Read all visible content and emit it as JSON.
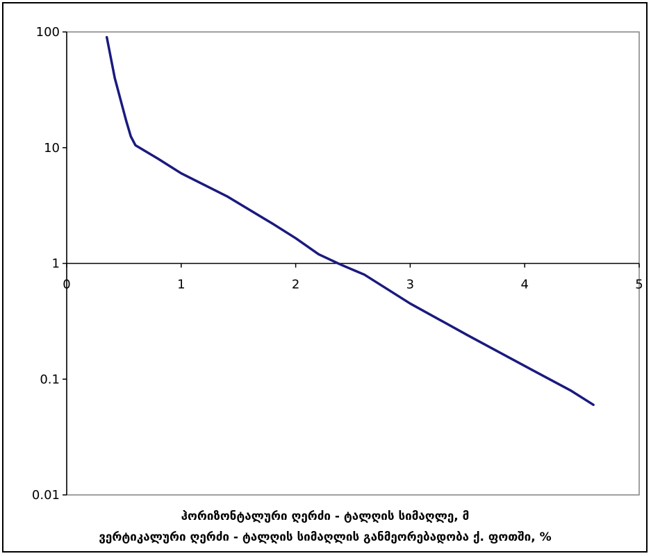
{
  "chart_data": {
    "type": "line",
    "title": "",
    "xlabel_lines": [
      "ჰორიზონტალური ღერძი - ტალღის სიმაღლე, მ",
      "ვერტიკალური ღერძი - ტალღის სიმაღლის განმეორებადობა ქ. ფოთში, %"
    ],
    "ylabel": "",
    "x_ticks": [
      "0",
      "1",
      "2",
      "3",
      "4",
      "5"
    ],
    "y_ticks": [
      "100",
      "10",
      "1",
      "0.1",
      "0.01"
    ],
    "xlim": [
      0,
      5
    ],
    "ylim": [
      0.01,
      100
    ],
    "y_scale": "log",
    "x_axis_crosses_y_at": 1,
    "grid": false,
    "legend": "none",
    "colors": {
      "line": "#1a1a7e",
      "axis": "#000000",
      "plot_border": "#808080"
    },
    "series": [
      {
        "x": [
          0.35,
          0.42,
          0.47,
          0.52,
          0.56,
          0.6,
          0.8,
          1.0,
          1.4,
          1.8,
          2.0,
          2.2,
          2.4,
          2.6,
          3.0,
          3.5,
          4.0,
          4.4,
          4.6
        ],
        "y": [
          90,
          40,
          26,
          17,
          12.5,
          10.5,
          8,
          6,
          3.8,
          2.2,
          1.65,
          1.2,
          0.97,
          0.8,
          0.45,
          0.24,
          0.13,
          0.08,
          0.06
        ]
      }
    ]
  }
}
